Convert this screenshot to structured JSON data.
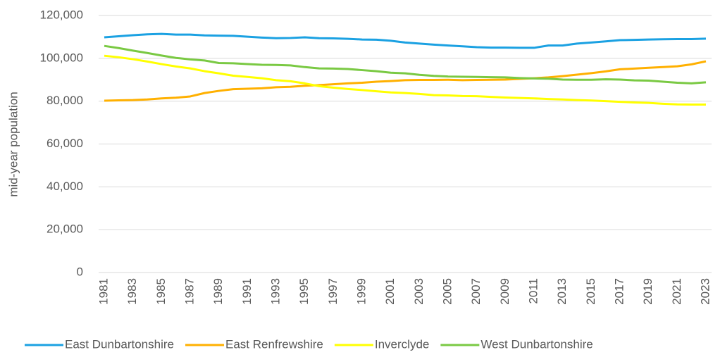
{
  "chart_data": {
    "type": "line",
    "y_label": "mid-year population",
    "x": [
      1981,
      1982,
      1983,
      1984,
      1985,
      1986,
      1987,
      1988,
      1989,
      1990,
      1991,
      1992,
      1993,
      1994,
      1995,
      1996,
      1997,
      1998,
      1999,
      2000,
      2001,
      2002,
      2003,
      2004,
      2005,
      2006,
      2007,
      2008,
      2009,
      2010,
      2011,
      2012,
      2013,
      2014,
      2015,
      2016,
      2017,
      2018,
      2019,
      2020,
      2021,
      2022,
      2023
    ],
    "xlim": [
      1981,
      2023
    ],
    "xticks": [
      1981,
      1983,
      1985,
      1987,
      1989,
      1991,
      1993,
      1995,
      1997,
      1999,
      2001,
      2003,
      2005,
      2007,
      2009,
      2011,
      2013,
      2015,
      2017,
      2019,
      2021,
      2023
    ],
    "ylim": [
      0,
      120000
    ],
    "yticks": [
      0,
      {
        "value": 20000,
        "label": "20,000"
      },
      {
        "value": 40000,
        "label": "40,000"
      },
      {
        "value": 60000,
        "label": "60,000"
      },
      {
        "value": 80000,
        "label": "80,000"
      },
      {
        "value": 100000,
        "label": "100,000"
      },
      {
        "value": 120000,
        "label": "120,000"
      }
    ],
    "grid": true,
    "legend": "bottom",
    "series": [
      {
        "name": "East Dunbartonshire",
        "color": "#1ba1e2",
        "values": [
          109800,
          110300,
          110800,
          111200,
          111400,
          111100,
          111100,
          110700,
          110600,
          110500,
          110100,
          109700,
          109400,
          109500,
          109800,
          109400,
          109300,
          109100,
          108800,
          108700,
          108200,
          107400,
          106900,
          106400,
          106000,
          105600,
          105200,
          105000,
          105000,
          104900,
          104900,
          106000,
          106000,
          106900,
          107400,
          107900,
          108500,
          108600,
          108800,
          108900,
          109000,
          109000,
          109200
        ]
      },
      {
        "name": "East Renfrewshire",
        "color": "#ffb000",
        "values": [
          80200,
          80400,
          80500,
          80800,
          81300,
          81600,
          82200,
          83800,
          84800,
          85600,
          85800,
          86000,
          86500,
          86700,
          87200,
          87500,
          87900,
          88300,
          88600,
          89100,
          89400,
          89800,
          89900,
          89900,
          90000,
          89800,
          89900,
          90000,
          90100,
          90400,
          90700,
          91100,
          91700,
          92400,
          93100,
          93900,
          94900,
          95200,
          95600,
          95900,
          96300,
          97200,
          98600
        ]
      },
      {
        "name": "Inverclyde",
        "color": "#ffff00",
        "values": [
          101200,
          100500,
          99600,
          98500,
          97300,
          96200,
          95300,
          94000,
          93000,
          91900,
          91300,
          90700,
          89800,
          89300,
          88300,
          87000,
          86300,
          85700,
          85200,
          84600,
          84100,
          83800,
          83400,
          82800,
          82700,
          82400,
          82300,
          82000,
          81700,
          81500,
          81300,
          81000,
          80800,
          80500,
          80300,
          80000,
          79700,
          79400,
          79200,
          78800,
          78500,
          78400,
          78400
        ]
      },
      {
        "name": "West Dunbartonshire",
        "color": "#7ac943",
        "values": [
          105800,
          104800,
          103600,
          102500,
          101300,
          100200,
          99500,
          99000,
          97800,
          97700,
          97300,
          97000,
          96900,
          96700,
          95900,
          95300,
          95200,
          95000,
          94500,
          94000,
          93300,
          93000,
          92300,
          91800,
          91500,
          91400,
          91300,
          91200,
          91100,
          90800,
          90600,
          90500,
          90100,
          90000,
          90000,
          90200,
          90100,
          89700,
          89600,
          89100,
          88600,
          88300,
          88800
        ]
      }
    ]
  }
}
